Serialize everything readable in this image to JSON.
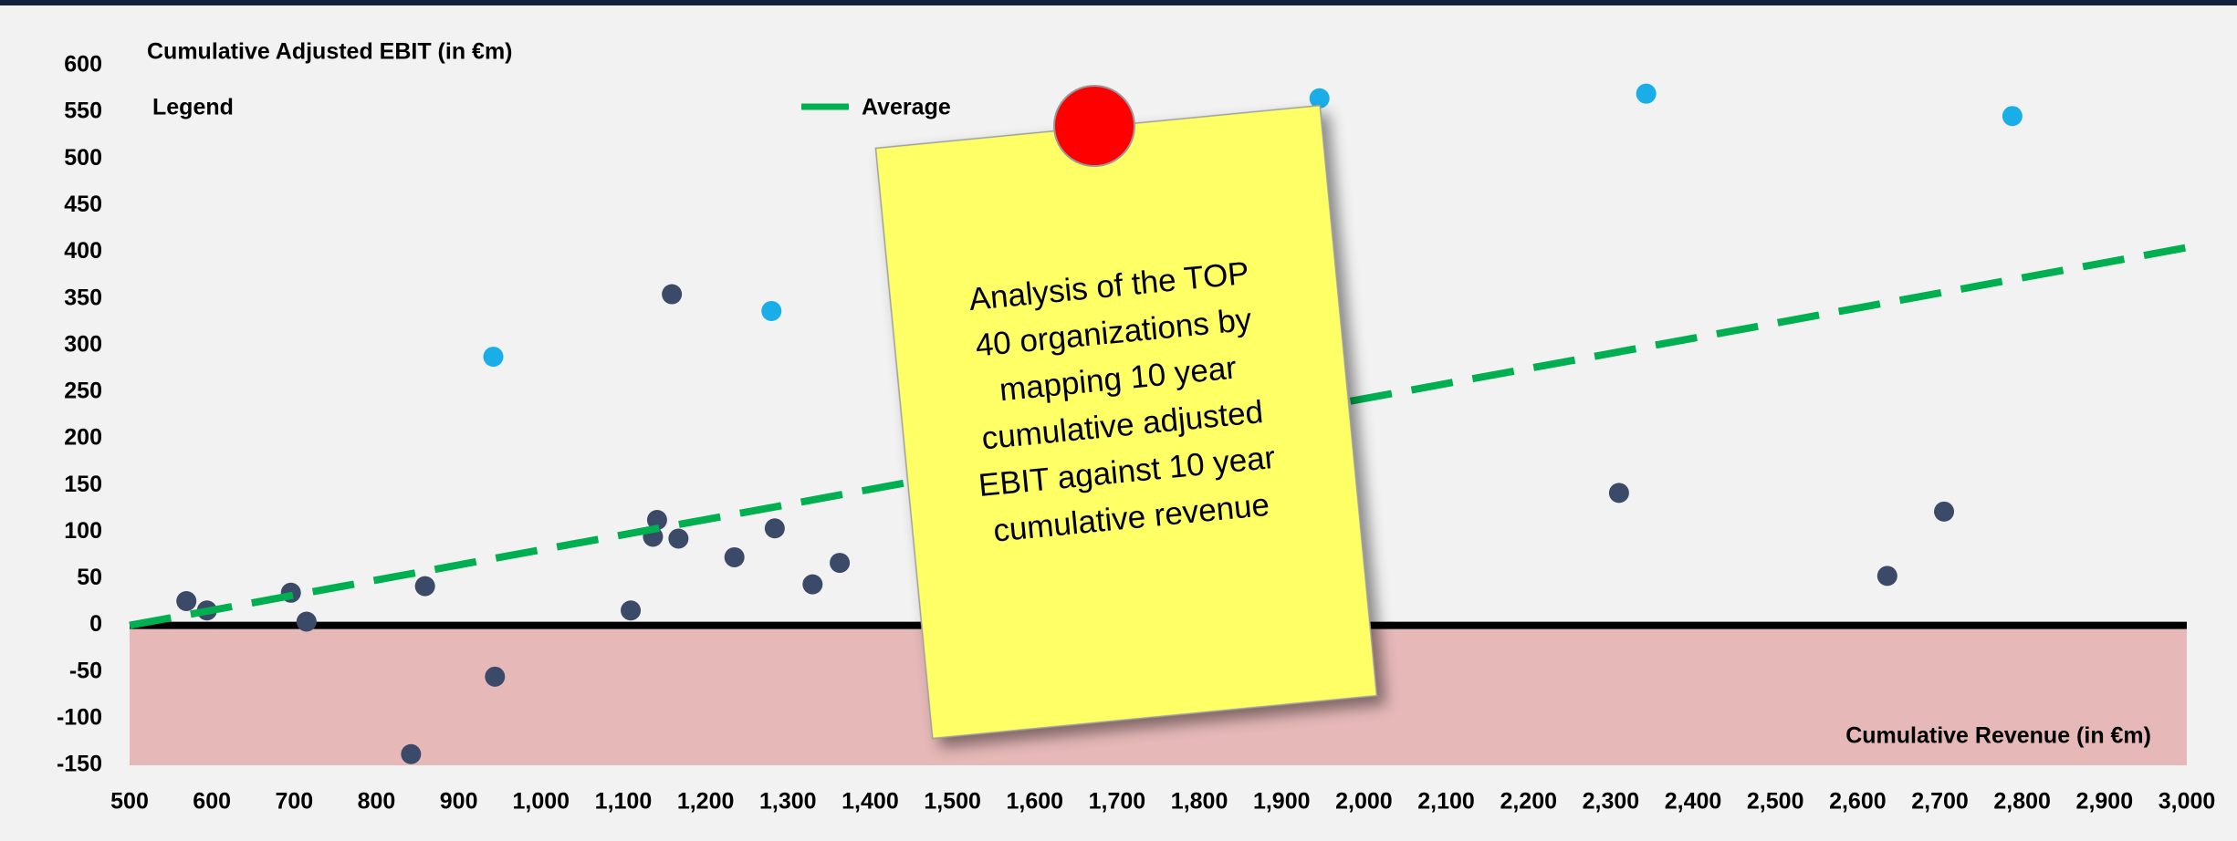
{
  "chart_data": {
    "type": "scatter",
    "title": "Cumulative Adjusted EBIT (in €m)",
    "x_label": "Cumulative Revenue (in €m)",
    "legend_title": "Legend",
    "xlim": [
      500,
      3000
    ],
    "ylim": [
      -150,
      600
    ],
    "xticks": [
      500,
      600,
      700,
      800,
      900,
      {
        "value": 1000,
        "label": "1,000"
      },
      {
        "value": 1100,
        "label": "1,100"
      },
      {
        "value": 1200,
        "label": "1,200"
      },
      {
        "value": 1300,
        "label": "1,300"
      },
      {
        "value": 1400,
        "label": "1,400"
      },
      {
        "value": 1500,
        "label": "1,500"
      },
      {
        "value": 1600,
        "label": "1,600"
      },
      {
        "value": 1700,
        "label": "1,700"
      },
      {
        "value": 1800,
        "label": "1,800"
      },
      {
        "value": 1900,
        "label": "1,900"
      },
      {
        "value": 2000,
        "label": "2,000"
      },
      {
        "value": 2100,
        "label": "2,100"
      },
      {
        "value": 2200,
        "label": "2,200"
      },
      {
        "value": 2300,
        "label": "2,300"
      },
      {
        "value": 2400,
        "label": "2,400"
      },
      {
        "value": 2500,
        "label": "2,500"
      },
      {
        "value": 2600,
        "label": "2,600"
      },
      {
        "value": 2700,
        "label": "2,700"
      },
      {
        "value": 2800,
        "label": "2,800"
      },
      {
        "value": 2900,
        "label": "2,900"
      },
      {
        "value": 3000,
        "label": "3,000"
      }
    ],
    "yticks": [
      -150,
      -100,
      -50,
      0,
      50,
      100,
      150,
      200,
      250,
      300,
      350,
      400,
      450,
      500,
      550,
      600
    ],
    "negative_zone_color": "#e6b8b8",
    "series": [
      {
        "color": "#3b4a68",
        "x": [
          569,
          594,
          696,
          715,
          859,
          842,
          944,
          1109,
          1136,
          1141,
          1159,
          1167,
          1235,
          1284,
          1330,
          1363,
          2310,
          2636,
          2705
        ],
        "values": [
          26,
          16,
          35,
          4,
          42,
          -138,
          -55,
          16,
          95,
          113,
          355,
          93,
          73,
          104,
          44,
          67,
          142,
          53,
          122
        ]
      },
      {
        "color": "#1aaee8",
        "x": [
          942,
          1280,
          1946,
          2343,
          2788
        ],
        "values": [
          288,
          337,
          565,
          570,
          546
        ]
      },
      {
        "name": "Average",
        "type": "line",
        "dashed": true,
        "color": "#00b050",
        "x": [
          500,
          3000
        ],
        "values": [
          0,
          405
        ]
      }
    ]
  },
  "note": {
    "lines": [
      "Analysis of the TOP",
      "40 organizations by",
      "mapping 10 year",
      "cumulative adjusted",
      "EBIT against 10 year",
      "cumulative revenue"
    ]
  }
}
